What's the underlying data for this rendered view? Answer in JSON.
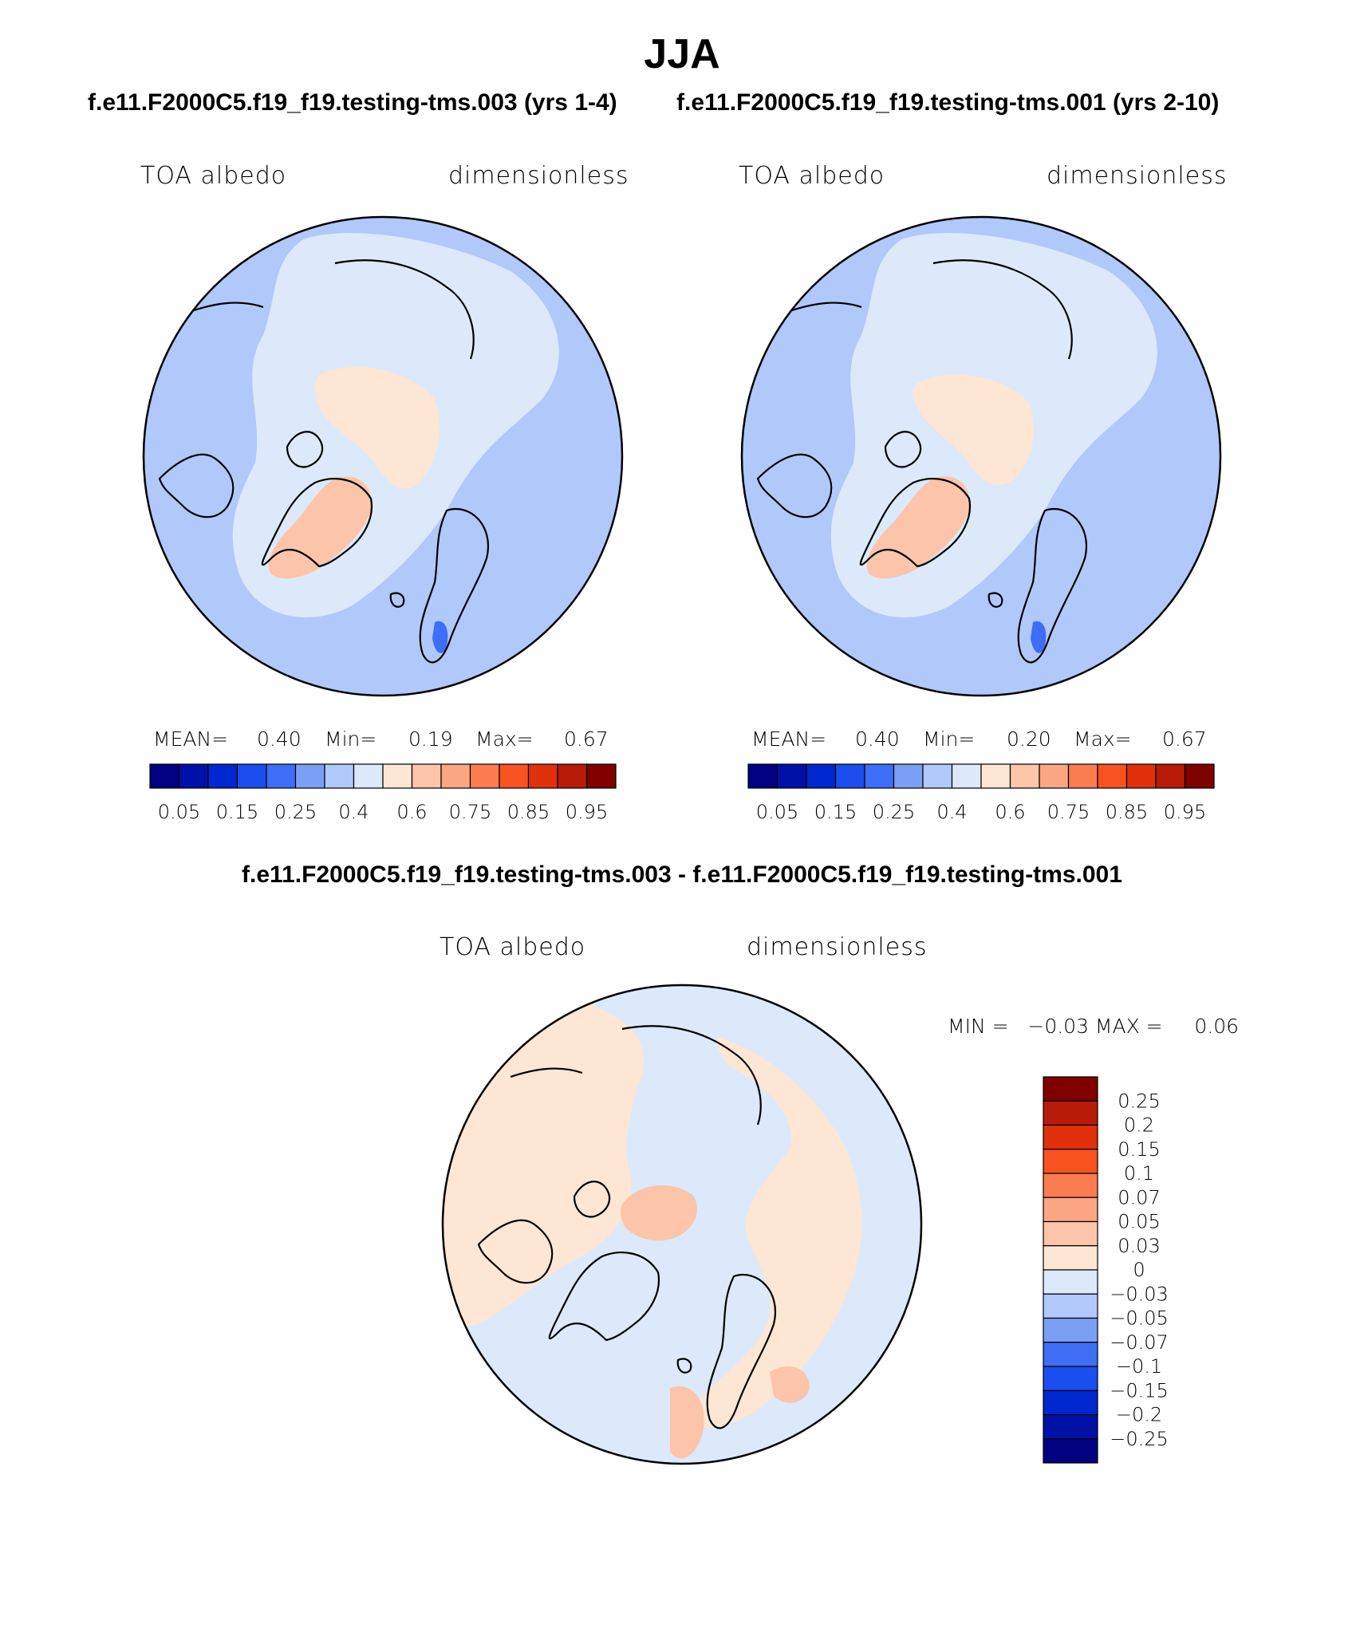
{
  "title": "JJA",
  "panel1": {
    "case_title": "f.e11.F2000C5.f19_f19.testing-tms.003 (yrs 1-4)",
    "left_label": "TOA albedo",
    "right_label": "dimensionless",
    "mean_label": "MEAN=",
    "mean_value": "0.40",
    "min_label": "Min=",
    "min_value": "0.19",
    "max_label": "Max=",
    "max_value": "0.67"
  },
  "panel2": {
    "case_title": "f.e11.F2000C5.f19_f19.testing-tms.001 (yrs 2-10)",
    "left_label": "TOA albedo",
    "right_label": "dimensionless",
    "mean_label": "MEAN=",
    "mean_value": "0.40",
    "min_label": "Min=",
    "min_value": "0.20",
    "max_label": "Max=",
    "max_value": "0.67"
  },
  "panel3": {
    "case_title": "f.e11.F2000C5.f19_f19.testing-tms.003 - f.e11.F2000C5.f19_f19.testing-tms.001",
    "left_label": "TOA albedo",
    "right_label": "dimensionless",
    "min_max_text": "MIN =   −0.03 MAX =     0.06"
  },
  "colorbar_abs": {
    "colors": [
      "#000080",
      "#0010a8",
      "#0028d0",
      "#1a4ef0",
      "#3d6ef5",
      "#7a9ff5",
      "#b0c8fa",
      "#dbe9fb",
      "#fde6d3",
      "#fcc4a8",
      "#fca582",
      "#fb7c50",
      "#f7521f",
      "#e0300c",
      "#b81c08",
      "#800000"
    ],
    "labels": [
      "0.05",
      "0.15",
      "0.25",
      "0.4",
      "0.6",
      "0.75",
      "0.85",
      "0.95"
    ]
  },
  "colorbar_diff": {
    "colors_top_to_bottom": [
      "#800000",
      "#b81c08",
      "#e0300c",
      "#f7521f",
      "#fb7c50",
      "#fca582",
      "#fcc4a8",
      "#fde6d3",
      "#dbe9fb",
      "#b0c8fa",
      "#7a9ff5",
      "#3d6ef5",
      "#1a4ef0",
      "#0028d0",
      "#0010a8",
      "#000080"
    ],
    "labels": [
      "0.25",
      "0.2",
      "0.15",
      "0.1",
      "0.07",
      "0.05",
      "0.03",
      "0",
      "−0.03",
      "−0.05",
      "−0.07",
      "−0.1",
      "−0.15",
      "−0.2",
      "−0.25"
    ]
  }
}
